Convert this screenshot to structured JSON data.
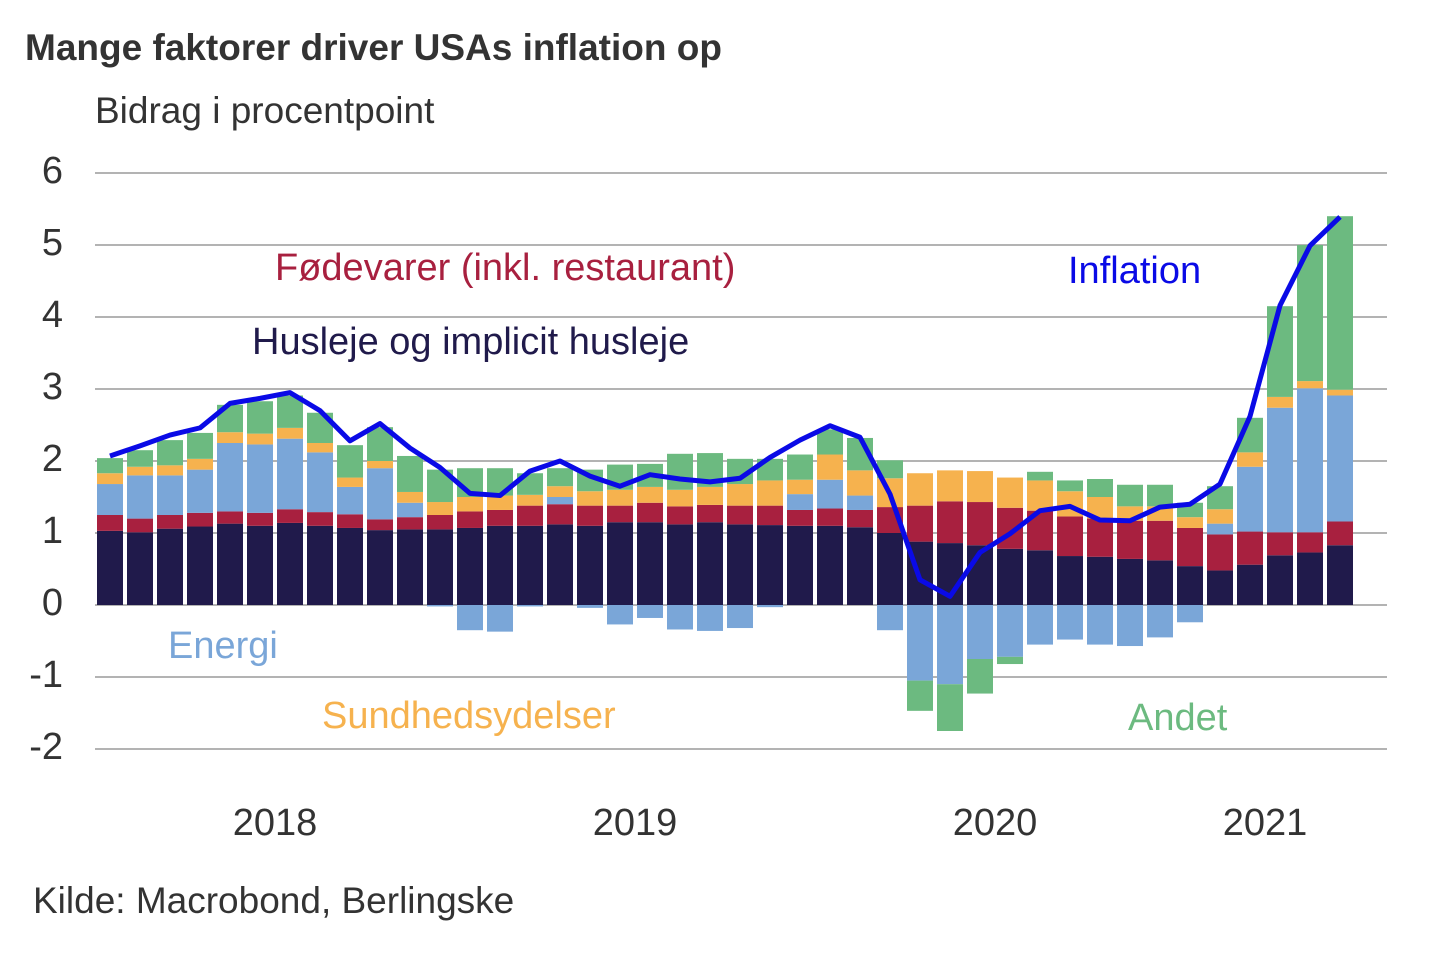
{
  "chart_data": {
    "type": "bar",
    "stacked": true,
    "title": "Mange faktorer driver USAs inflation op",
    "subtitle": "Bidrag i procentpoint",
    "source": "Kilde: Macrobond, Berlingske",
    "categories": [
      "2018",
      "2018",
      "2018",
      "2018",
      "2018",
      "2018",
      "2018",
      "2018",
      "2018",
      "2018",
      "2018",
      "2018",
      "2019",
      "2019",
      "2019",
      "2019",
      "2019",
      "2019",
      "2019",
      "2019",
      "2019",
      "2019",
      "2019",
      "2019",
      "2020",
      "2020",
      "2020",
      "2020",
      "2020",
      "2020",
      "2020",
      "2020",
      "2020",
      "2020",
      "2020",
      "2020",
      "2021",
      "2021",
      "2021",
      "2021",
      "2021",
      "2021"
    ],
    "ylim": [
      -2,
      6
    ],
    "yticks": [
      -2,
      -1,
      0,
      1,
      2,
      3,
      4,
      5,
      6
    ],
    "grid": true,
    "series": [
      {
        "name": "Husleje og implicit husleje",
        "color": "#201a4b",
        "values": [
          1.03,
          1.01,
          1.06,
          1.09,
          1.13,
          1.1,
          1.14,
          1.1,
          1.07,
          1.04,
          1.05,
          1.05,
          1.07,
          1.1,
          1.1,
          1.12,
          1.1,
          1.15,
          1.15,
          1.12,
          1.15,
          1.12,
          1.11,
          1.1,
          1.1,
          1.08,
          1.0,
          0.88,
          0.86,
          0.83,
          0.78,
          0.76,
          0.68,
          0.67,
          0.64,
          0.62,
          0.54,
          0.48,
          0.56,
          0.69,
          0.73,
          0.83
        ]
      },
      {
        "name": "Fødevarer (inkl. restaurant)",
        "color": "#a8203f",
        "values": [
          0.22,
          0.19,
          0.19,
          0.19,
          0.17,
          0.18,
          0.19,
          0.19,
          0.19,
          0.15,
          0.17,
          0.2,
          0.23,
          0.22,
          0.28,
          0.28,
          0.28,
          0.23,
          0.27,
          0.25,
          0.24,
          0.26,
          0.27,
          0.22,
          0.24,
          0.24,
          0.36,
          0.5,
          0.58,
          0.6,
          0.57,
          0.55,
          0.55,
          0.53,
          0.53,
          0.55,
          0.53,
          0.5,
          0.46,
          0.32,
          0.28,
          0.33
        ]
      },
      {
        "name": "Energi",
        "color": "#7aa6d8",
        "values": [
          0.43,
          0.6,
          0.55,
          0.6,
          0.95,
          0.95,
          0.98,
          0.83,
          0.38,
          0.71,
          0.2,
          -0.02,
          -0.35,
          -0.37,
          -0.02,
          0.1,
          -0.04,
          -0.27,
          -0.18,
          -0.34,
          -0.36,
          -0.32,
          -0.03,
          0.22,
          0.4,
          0.2,
          -0.35,
          -1.05,
          -1.1,
          -0.75,
          -0.72,
          -0.55,
          -0.48,
          -0.55,
          -0.57,
          -0.45,
          -0.24,
          0.15,
          0.9,
          1.73,
          2.0,
          1.75
        ]
      },
      {
        "name": "Sundhedsydelser",
        "color": "#f6b24e",
        "values": [
          0.15,
          0.12,
          0.14,
          0.15,
          0.15,
          0.15,
          0.15,
          0.13,
          0.13,
          0.1,
          0.15,
          0.18,
          0.2,
          0.2,
          0.15,
          0.15,
          0.2,
          0.22,
          0.22,
          0.23,
          0.25,
          0.3,
          0.35,
          0.2,
          0.35,
          0.35,
          0.4,
          0.45,
          0.43,
          0.43,
          0.42,
          0.42,
          0.35,
          0.3,
          0.2,
          0.2,
          0.15,
          0.2,
          0.2,
          0.15,
          0.1,
          0.08
        ]
      },
      {
        "name": "Andet",
        "color": "#6cba80",
        "values": [
          0.21,
          0.23,
          0.35,
          0.36,
          0.38,
          0.45,
          0.45,
          0.42,
          0.45,
          0.47,
          0.5,
          0.45,
          0.4,
          0.38,
          0.3,
          0.25,
          0.3,
          0.35,
          0.32,
          0.5,
          0.47,
          0.35,
          0.3,
          0.35,
          0.35,
          0.45,
          0.25,
          -0.42,
          -0.65,
          -0.48,
          -0.1,
          0.12,
          0.15,
          0.25,
          0.3,
          0.3,
          0.2,
          0.32,
          0.48,
          1.26,
          1.89,
          2.41
        ]
      },
      {
        "name": "Inflation",
        "color": "#0a0ae6",
        "type": "line",
        "values": [
          2.07,
          2.21,
          2.36,
          2.46,
          2.8,
          2.87,
          2.95,
          2.7,
          2.28,
          2.52,
          2.18,
          1.91,
          1.55,
          1.52,
          1.86,
          2.0,
          1.79,
          1.65,
          1.81,
          1.75,
          1.71,
          1.76,
          2.05,
          2.29,
          2.49,
          2.33,
          1.54,
          0.35,
          0.12,
          0.73,
          0.99,
          1.31,
          1.37,
          1.18,
          1.17,
          1.36,
          1.4,
          1.68,
          2.62,
          4.16,
          4.99,
          5.39
        ]
      }
    ]
  }
}
